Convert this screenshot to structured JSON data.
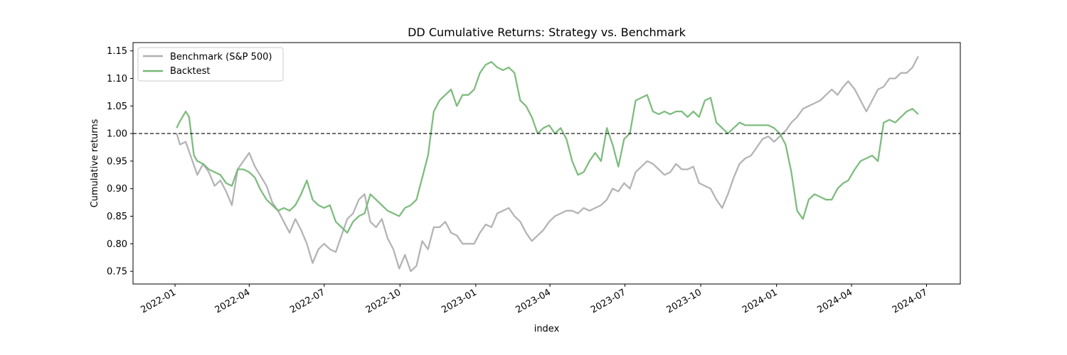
{
  "chart_data": {
    "type": "line",
    "title": "DD Cumulative Returns: Strategy vs. Benchmark",
    "xlabel": "index",
    "ylabel": "Cumulative returns",
    "xlim": [
      "2021-11-11",
      "2024-08-11"
    ],
    "ylim": [
      0.727,
      1.165
    ],
    "x_ticks": [
      "2022-01",
      "2022-04",
      "2022-07",
      "2022-10",
      "2023-01",
      "2023-04",
      "2023-07",
      "2023-10",
      "2024-01",
      "2024-04",
      "2024-07"
    ],
    "y_ticks": [
      0.75,
      0.8,
      0.85,
      0.9,
      0.95,
      1.0,
      1.05,
      1.1,
      1.15
    ],
    "y_tick_labels": [
      "0.75",
      "0.80",
      "0.85",
      "0.90",
      "0.95",
      "1.00",
      "1.05",
      "1.10",
      "1.15"
    ],
    "grid": false,
    "legend_position": "upper-left",
    "reference_line": {
      "y": 1.0,
      "style": "dashed",
      "color": "#000000"
    },
    "series": [
      {
        "name": "Benchmark (S&P 500)",
        "color": "#b0b0b0",
        "x": [
          "2022-01-03",
          "2022-01-07",
          "2022-01-14",
          "2022-01-21",
          "2022-01-28",
          "2022-02-04",
          "2022-02-11",
          "2022-02-18",
          "2022-02-25",
          "2022-03-04",
          "2022-03-11",
          "2022-03-18",
          "2022-03-25",
          "2022-04-01",
          "2022-04-08",
          "2022-04-14",
          "2022-04-22",
          "2022-04-29",
          "2022-05-06",
          "2022-05-13",
          "2022-05-20",
          "2022-05-27",
          "2022-06-03",
          "2022-06-10",
          "2022-06-17",
          "2022-06-24",
          "2022-07-01",
          "2022-07-08",
          "2022-07-15",
          "2022-07-22",
          "2022-07-29",
          "2022-08-05",
          "2022-08-12",
          "2022-08-19",
          "2022-08-26",
          "2022-09-02",
          "2022-09-09",
          "2022-09-16",
          "2022-09-23",
          "2022-09-30",
          "2022-10-07",
          "2022-10-14",
          "2022-10-21",
          "2022-10-28",
          "2022-11-04",
          "2022-11-11",
          "2022-11-18",
          "2022-11-25",
          "2022-12-02",
          "2022-12-09",
          "2022-12-16",
          "2022-12-23",
          "2022-12-30",
          "2023-01-06",
          "2023-01-13",
          "2023-01-20",
          "2023-01-27",
          "2023-02-03",
          "2023-02-10",
          "2023-02-17",
          "2023-02-24",
          "2023-03-03",
          "2023-03-10",
          "2023-03-17",
          "2023-03-24",
          "2023-03-31",
          "2023-04-07",
          "2023-04-14",
          "2023-04-21",
          "2023-04-28",
          "2023-05-05",
          "2023-05-12",
          "2023-05-19",
          "2023-05-26",
          "2023-06-02",
          "2023-06-09",
          "2023-06-16",
          "2023-06-23",
          "2023-06-30",
          "2023-07-07",
          "2023-07-14",
          "2023-07-21",
          "2023-07-28",
          "2023-08-04",
          "2023-08-11",
          "2023-08-18",
          "2023-08-25",
          "2023-09-01",
          "2023-09-08",
          "2023-09-15",
          "2023-09-22",
          "2023-09-29",
          "2023-10-06",
          "2023-10-13",
          "2023-10-20",
          "2023-10-27",
          "2023-11-03",
          "2023-11-10",
          "2023-11-17",
          "2023-11-24",
          "2023-12-01",
          "2023-12-08",
          "2023-12-15",
          "2023-12-22",
          "2023-12-29",
          "2024-01-05",
          "2024-01-12",
          "2024-01-19",
          "2024-01-26",
          "2024-02-02",
          "2024-02-09",
          "2024-02-16",
          "2024-02-23",
          "2024-03-01",
          "2024-03-08",
          "2024-03-15",
          "2024-03-22",
          "2024-03-28",
          "2024-04-05",
          "2024-04-12",
          "2024-04-19",
          "2024-04-26",
          "2024-05-03",
          "2024-05-10",
          "2024-05-17",
          "2024-05-24",
          "2024-05-31",
          "2024-06-07",
          "2024-06-14",
          "2024-06-21"
        ],
        "values": [
          1.0,
          0.98,
          0.985,
          0.955,
          0.925,
          0.945,
          0.93,
          0.905,
          0.915,
          0.895,
          0.87,
          0.935,
          0.95,
          0.965,
          0.94,
          0.925,
          0.905,
          0.875,
          0.86,
          0.84,
          0.82,
          0.845,
          0.825,
          0.8,
          0.765,
          0.79,
          0.8,
          0.79,
          0.785,
          0.815,
          0.845,
          0.855,
          0.88,
          0.89,
          0.84,
          0.83,
          0.845,
          0.81,
          0.79,
          0.755,
          0.78,
          0.75,
          0.76,
          0.805,
          0.79,
          0.83,
          0.83,
          0.84,
          0.82,
          0.815,
          0.8,
          0.8,
          0.8,
          0.82,
          0.835,
          0.83,
          0.855,
          0.86,
          0.865,
          0.85,
          0.84,
          0.82,
          0.805,
          0.815,
          0.825,
          0.84,
          0.85,
          0.855,
          0.86,
          0.86,
          0.855,
          0.865,
          0.86,
          0.865,
          0.87,
          0.88,
          0.9,
          0.895,
          0.91,
          0.9,
          0.93,
          0.94,
          0.95,
          0.945,
          0.935,
          0.925,
          0.93,
          0.945,
          0.935,
          0.935,
          0.94,
          0.91,
          0.905,
          0.9,
          0.88,
          0.865,
          0.89,
          0.92,
          0.945,
          0.955,
          0.96,
          0.975,
          0.99,
          0.995,
          0.985,
          0.995,
          1.005,
          1.02,
          1.03,
          1.045,
          1.05,
          1.055,
          1.06,
          1.07,
          1.08,
          1.07,
          1.085,
          1.095,
          1.08,
          1.06,
          1.04,
          1.06,
          1.08,
          1.085,
          1.1,
          1.1,
          1.11,
          1.11,
          1.12,
          1.14
        ]
      },
      {
        "name": "Backtest",
        "color": "#77b878",
        "x": [
          "2022-01-03",
          "2022-01-06",
          "2022-01-10",
          "2022-01-14",
          "2022-01-18",
          "2022-01-24",
          "2022-01-28",
          "2022-02-04",
          "2022-02-11",
          "2022-02-18",
          "2022-02-25",
          "2022-03-04",
          "2022-03-11",
          "2022-03-18",
          "2022-03-25",
          "2022-04-01",
          "2022-04-08",
          "2022-04-14",
          "2022-04-22",
          "2022-04-29",
          "2022-05-06",
          "2022-05-13",
          "2022-05-20",
          "2022-05-27",
          "2022-06-03",
          "2022-06-10",
          "2022-06-17",
          "2022-06-24",
          "2022-07-01",
          "2022-07-08",
          "2022-07-15",
          "2022-07-22",
          "2022-07-29",
          "2022-08-05",
          "2022-08-12",
          "2022-08-19",
          "2022-08-26",
          "2022-09-02",
          "2022-09-09",
          "2022-09-16",
          "2022-09-23",
          "2022-09-30",
          "2022-10-07",
          "2022-10-14",
          "2022-10-21",
          "2022-10-28",
          "2022-11-04",
          "2022-11-11",
          "2022-11-18",
          "2022-11-25",
          "2022-12-02",
          "2022-12-09",
          "2022-12-16",
          "2022-12-23",
          "2022-12-30",
          "2023-01-06",
          "2023-01-13",
          "2023-01-20",
          "2023-01-27",
          "2023-02-03",
          "2023-02-10",
          "2023-02-17",
          "2023-02-24",
          "2023-03-03",
          "2023-03-10",
          "2023-03-17",
          "2023-03-24",
          "2023-03-31",
          "2023-04-07",
          "2023-04-14",
          "2023-04-21",
          "2023-04-28",
          "2023-05-05",
          "2023-05-12",
          "2023-05-19",
          "2023-05-26",
          "2023-06-02",
          "2023-06-09",
          "2023-06-16",
          "2023-06-23",
          "2023-06-30",
          "2023-07-07",
          "2023-07-14",
          "2023-07-21",
          "2023-07-28",
          "2023-08-04",
          "2023-08-11",
          "2023-08-18",
          "2023-08-25",
          "2023-09-01",
          "2023-09-08",
          "2023-09-15",
          "2023-09-22",
          "2023-09-29",
          "2023-10-06",
          "2023-10-13",
          "2023-10-20",
          "2023-10-27",
          "2023-11-03",
          "2023-11-10",
          "2023-11-17",
          "2023-11-24",
          "2023-12-01",
          "2023-12-08",
          "2023-12-15",
          "2023-12-22",
          "2023-12-29",
          "2024-01-05",
          "2024-01-12",
          "2024-01-19",
          "2024-01-26",
          "2024-02-02",
          "2024-02-09",
          "2024-02-16",
          "2024-02-23",
          "2024-03-01",
          "2024-03-08",
          "2024-03-15",
          "2024-03-22",
          "2024-03-28",
          "2024-04-05",
          "2024-04-12",
          "2024-04-19",
          "2024-04-26",
          "2024-05-03",
          "2024-05-10",
          "2024-05-17",
          "2024-05-24",
          "2024-05-31",
          "2024-06-07",
          "2024-06-14",
          "2024-06-21"
        ],
        "values": [
          1.01,
          1.02,
          1.03,
          1.04,
          1.03,
          0.96,
          0.95,
          0.945,
          0.935,
          0.93,
          0.925,
          0.91,
          0.905,
          0.935,
          0.935,
          0.93,
          0.92,
          0.9,
          0.88,
          0.87,
          0.86,
          0.865,
          0.86,
          0.87,
          0.89,
          0.915,
          0.88,
          0.87,
          0.865,
          0.87,
          0.84,
          0.83,
          0.82,
          0.84,
          0.85,
          0.855,
          0.89,
          0.88,
          0.87,
          0.86,
          0.855,
          0.85,
          0.865,
          0.87,
          0.88,
          0.92,
          0.96,
          1.04,
          1.06,
          1.07,
          1.08,
          1.05,
          1.07,
          1.07,
          1.08,
          1.11,
          1.125,
          1.13,
          1.12,
          1.115,
          1.12,
          1.11,
          1.06,
          1.05,
          1.03,
          1.0,
          1.01,
          1.015,
          1.0,
          1.01,
          0.99,
          0.95,
          0.925,
          0.93,
          0.95,
          0.965,
          0.95,
          1.01,
          0.98,
          0.94,
          0.99,
          1.0,
          1.06,
          1.065,
          1.07,
          1.04,
          1.035,
          1.04,
          1.035,
          1.04,
          1.04,
          1.03,
          1.04,
          1.03,
          1.06,
          1.065,
          1.02,
          1.01,
          1.0,
          1.01,
          1.02,
          1.015,
          1.015,
          1.015,
          1.015,
          1.015,
          1.01,
          1.0,
          0.98,
          0.93,
          0.86,
          0.845,
          0.88,
          0.89,
          0.885,
          0.88,
          0.88,
          0.9,
          0.91,
          0.915,
          0.935,
          0.95,
          0.955,
          0.96,
          0.95,
          1.02,
          1.025,
          1.02,
          1.03,
          1.04,
          1.045,
          1.035
        ]
      }
    ]
  }
}
